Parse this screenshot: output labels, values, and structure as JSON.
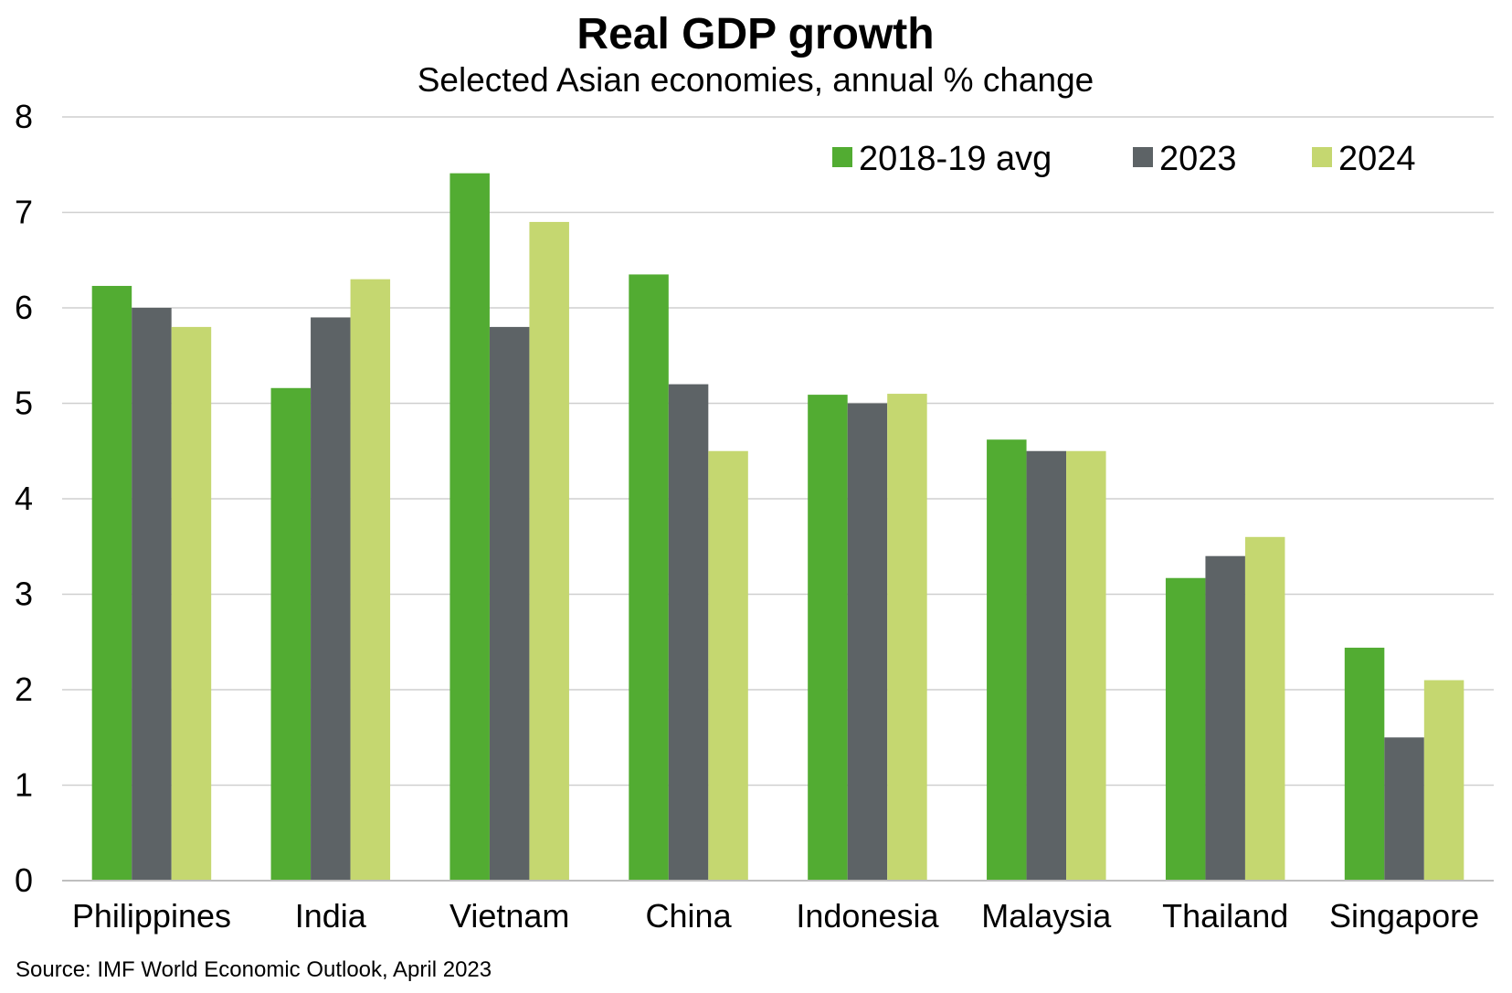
{
  "chart_data": {
    "type": "bar",
    "title": "Real GDP growth",
    "subtitle": "Selected Asian economies, annual % change",
    "xlabel": "",
    "ylabel": "",
    "ylim": [
      0,
      8
    ],
    "yticks": [
      0,
      1,
      2,
      3,
      4,
      5,
      6,
      7,
      8
    ],
    "grid": true,
    "legend_position": "top-right",
    "categories": [
      "Philippines",
      "India",
      "Vietnam",
      "China",
      "Indonesia",
      "Malaysia",
      "Thailand",
      "Singapore"
    ],
    "series": [
      {
        "name": "2018-19 avg",
        "color": "#52ac32",
        "values": [
          6.23,
          5.16,
          7.41,
          6.35,
          5.09,
          4.62,
          3.17,
          2.44
        ]
      },
      {
        "name": "2023",
        "color": "#5d6366",
        "values": [
          6.0,
          5.9,
          5.8,
          5.2,
          5.0,
          4.5,
          3.4,
          1.5
        ]
      },
      {
        "name": "2024",
        "color": "#c5d770",
        "values": [
          5.8,
          6.3,
          6.9,
          4.5,
          5.1,
          4.5,
          3.6,
          2.1
        ]
      }
    ],
    "source": "Source: IMF World Economic Outlook, April 2023"
  },
  "colors": {
    "gridline": "#cfcfcf",
    "axis": "#bfbfbf",
    "text": "#000000",
    "background": "#ffffff"
  }
}
